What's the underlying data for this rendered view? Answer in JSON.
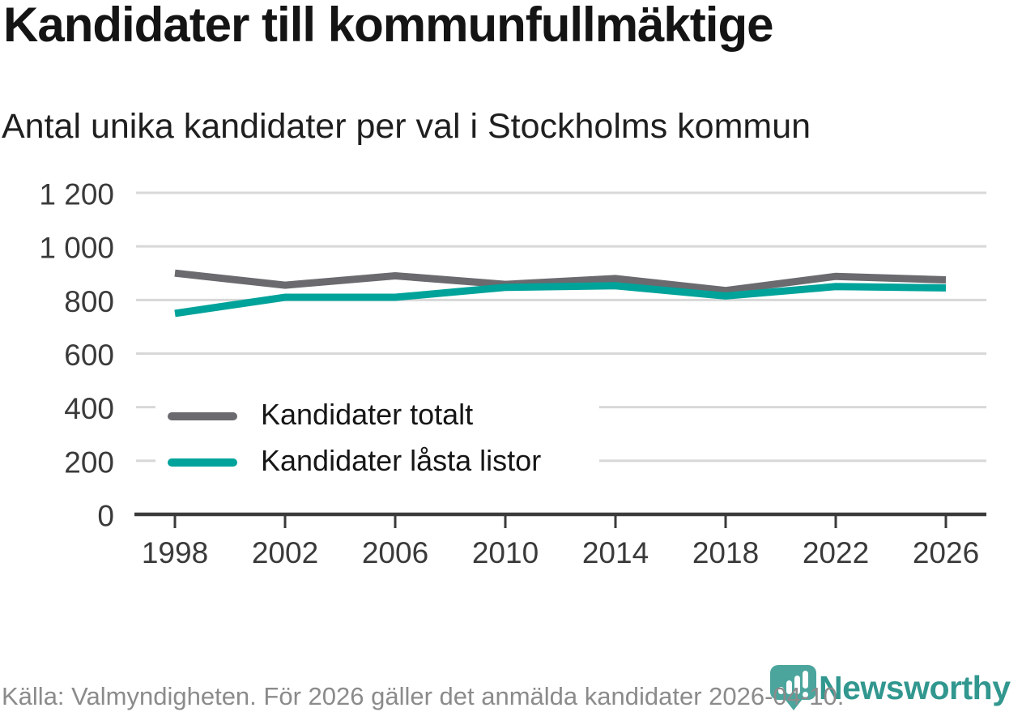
{
  "chart_data": {
    "type": "line",
    "title": "Kandidater till kommunfullmäktige",
    "subtitle": "Antal unika kandidater per val i Stockholms kommun",
    "categories": [
      "1998",
      "2002",
      "2006",
      "2010",
      "2014",
      "2018",
      "2022",
      "2026"
    ],
    "series": [
      {
        "name": "Kandidater totalt",
        "color": "#6b6a6e",
        "values": [
          900,
          855,
          890,
          858,
          880,
          835,
          888,
          875
        ]
      },
      {
        "name": "Kandidater låsta listor",
        "color": "#00a39a",
        "values": [
          750,
          810,
          810,
          847,
          853,
          815,
          850,
          845
        ]
      }
    ],
    "ylim": [
      0,
      1200
    ],
    "yticks": {
      "values": [
        0,
        200,
        400,
        600,
        800,
        1000,
        1200
      ],
      "labels": [
        "0",
        "200",
        "400",
        "600",
        "800",
        "1 000",
        "1 200"
      ]
    },
    "grid": "horizontal",
    "legend_position": "inside-left",
    "xlabel": "",
    "ylabel": ""
  },
  "footer": {
    "source": "Källa: Valmyndigheten. För 2026 gäller det anmälda kandidater 2026-04-10.",
    "brand": "Newsworthy"
  },
  "colors": {
    "background": "#ffffff",
    "grid": "#d8d8d8",
    "axis": "#3b3b3b",
    "tick_label": "#3a3a3a",
    "title": "#141414",
    "subtitle": "#1f1f1f",
    "footer_text": "#8b8b8b",
    "logo_pin": "#4ba59d",
    "logo_text": "#31978f"
  }
}
